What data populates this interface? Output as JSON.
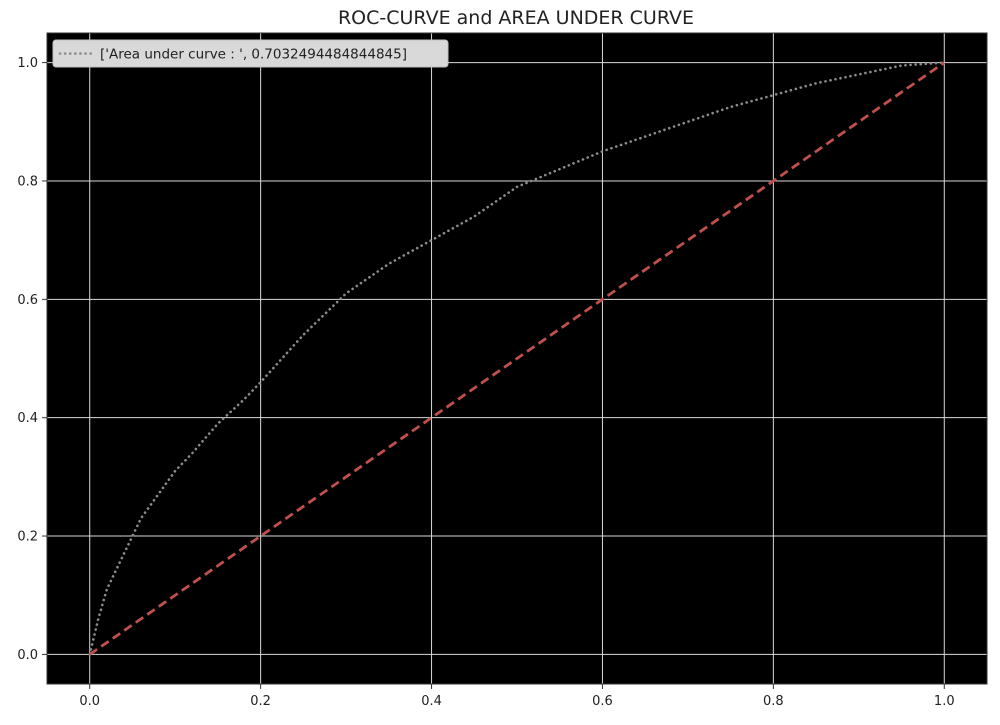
{
  "chart_data": {
    "type": "line",
    "title": "ROC-CURVE and AREA UNDER CURVE",
    "xlabel": "",
    "ylabel": "",
    "xlim": [
      -0.05,
      1.05
    ],
    "ylim": [
      -0.05,
      1.05
    ],
    "xticks": [
      "0.0",
      "0.2",
      "0.4",
      "0.6",
      "0.8",
      "1.0"
    ],
    "yticks": [
      "0.0",
      "0.2",
      "0.4",
      "0.6",
      "0.8",
      "1.0"
    ],
    "grid": true,
    "legend_placement": "top-left",
    "series": [
      {
        "name": "['Area under curve : ', 0.7032494484844845]",
        "style": "dotted",
        "color": "#8c8c8c",
        "x": [
          0.0,
          0.01,
          0.02,
          0.04,
          0.06,
          0.08,
          0.1,
          0.12,
          0.15,
          0.18,
          0.2,
          0.25,
          0.3,
          0.35,
          0.4,
          0.45,
          0.5,
          0.55,
          0.6,
          0.65,
          0.7,
          0.75,
          0.8,
          0.85,
          0.9,
          0.95,
          1.0
        ],
        "y": [
          0.0,
          0.06,
          0.11,
          0.17,
          0.23,
          0.27,
          0.31,
          0.34,
          0.39,
          0.43,
          0.46,
          0.54,
          0.61,
          0.66,
          0.7,
          0.74,
          0.79,
          0.82,
          0.85,
          0.875,
          0.9,
          0.925,
          0.945,
          0.965,
          0.98,
          0.995,
          1.0
        ]
      },
      {
        "name": "",
        "style": "dashed",
        "color": "#c0504d",
        "x": [
          0.0,
          1.0
        ],
        "y": [
          0.0,
          1.0
        ]
      }
    ]
  },
  "colors": {
    "plot_background": "#000000",
    "grid": "#d9d9d9",
    "page_background": "#ffffff",
    "legend_background": "#d9d9d9"
  }
}
